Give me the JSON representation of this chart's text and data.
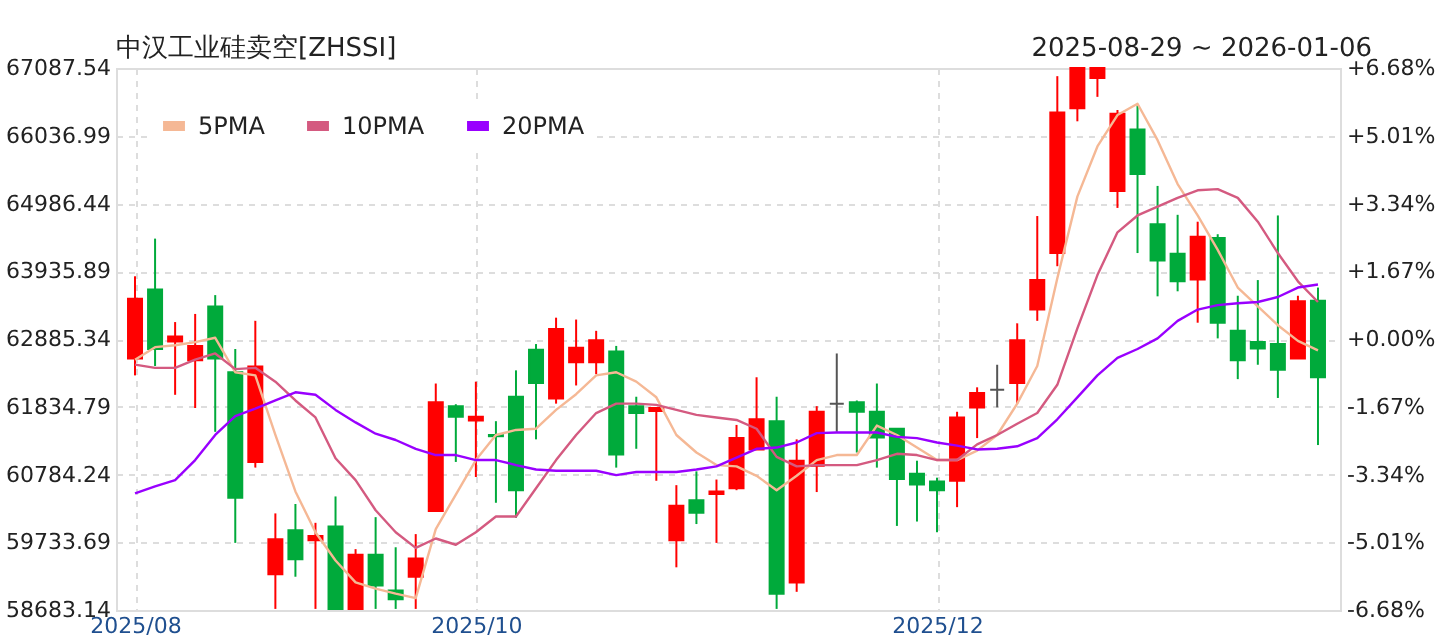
{
  "chart_data": {
    "type": "candlestick",
    "title": "中汉工业硅卖空[ZHSSI]",
    "subtitle": "2025-08-29 ~ 2026-01-06",
    "categories": [
      "2025/08",
      null,
      null,
      null,
      null,
      null,
      null,
      null,
      null,
      null,
      null,
      null,
      null,
      null,
      null,
      null,
      null,
      "2025/10",
      null,
      null,
      null,
      null,
      null,
      null,
      null,
      null,
      null,
      null,
      null,
      null,
      null,
      null,
      null,
      null,
      null,
      null,
      null,
      null,
      null,
      null,
      "2025/12",
      null,
      null,
      null,
      null,
      null,
      null,
      null,
      null,
      null,
      null,
      null,
      null,
      null,
      null,
      null,
      null,
      null,
      null,
      null
    ],
    "ohlc": [
      [
        62583,
        63858,
        62321,
        63508
      ],
      [
        63654,
        64442,
        62467,
        62730
      ],
      [
        62846,
        63148,
        62020,
        62924
      ],
      [
        62555,
        63274,
        61815,
        62778
      ],
      [
        63391,
        63566,
        61446,
        62583
      ],
      [
        62370,
        62730,
        59724,
        60425
      ],
      [
        60979,
        63167,
        60891,
        62457
      ],
      [
        59238,
        60181,
        58700,
        59782
      ],
      [
        59918,
        60327,
        59199,
        59471
      ],
      [
        59763,
        60035,
        58700,
        59831
      ],
      [
        59977,
        60444,
        58690,
        58700
      ],
      [
        58700,
        59627,
        58690,
        59539
      ],
      [
        59539,
        60123,
        58700,
        59062
      ],
      [
        58985,
        59656,
        58700,
        58848
      ],
      [
        59199,
        59860,
        58700,
        59481
      ],
      [
        60220,
        62195,
        60220,
        61903
      ],
      [
        61844,
        61874,
        60979,
        61679
      ],
      [
        61621,
        62224,
        60745,
        61679
      ],
      [
        61397,
        61611,
        60346,
        61378
      ],
      [
        61990,
        62399,
        60113,
        60541
      ],
      [
        62720,
        62807,
        61329,
        62204
      ],
      [
        61961,
        63216,
        61883,
        63041
      ],
      [
        62525,
        63187,
        62165,
        62749
      ],
      [
        62525,
        63012,
        62340,
        62866
      ],
      [
        62691,
        62778,
        60891,
        61095
      ],
      [
        61844,
        61990,
        61183,
        61737
      ],
      [
        61767,
        61815,
        60687,
        61815
      ],
      [
        59763,
        60619,
        59345,
        60298
      ],
      [
        60386,
        60833,
        60016,
        60191
      ],
      [
        60483,
        60706,
        59724,
        60522
      ],
      [
        60570,
        61553,
        60541,
        61349
      ],
      [
        61173,
        62292,
        61173,
        61640
      ],
      [
        61611,
        61990,
        58700,
        58936
      ],
      [
        59111,
        61329,
        58965,
        60998
      ],
      [
        60920,
        61844,
        60512,
        61757
      ],
      [
        61883,
        62661,
        61446,
        61883
      ],
      [
        61903,
        61932,
        61125,
        61757
      ],
      [
        61757,
        62195,
        60891,
        61358
      ],
      [
        61494,
        61494,
        59987,
        60716
      ],
      [
        60794,
        60998,
        60055,
        60629
      ],
      [
        60677,
        60735,
        59889,
        60541
      ],
      [
        60687,
        61757,
        60278,
        61669
      ],
      [
        61825,
        62136,
        61349,
        62049
      ],
      [
        62097,
        62486,
        61825,
        62097
      ],
      [
        62204,
        63128,
        61883,
        62866
      ],
      [
        63342,
        64792,
        63167,
        63799
      ],
      [
        64218,
        66961,
        64014,
        66397
      ],
      [
        66465,
        67087,
        66261,
        67087
      ],
      [
        66932,
        67087,
        66640,
        67087
      ],
      [
        65181,
        66436,
        64918,
        66377
      ],
      [
        66134,
        66523,
        64218,
        65444
      ],
      [
        64665,
        65259,
        63547,
        64101
      ],
      [
        64208,
        64811,
        63625,
        63780
      ],
      [
        63809,
        64704,
        63138,
        64471
      ],
      [
        64451,
        64510,
        62895,
        63138
      ],
      [
        63012,
        63556,
        62263,
        62555
      ],
      [
        62837,
        63799,
        62486,
        62739
      ],
      [
        62807,
        64801,
        61971,
        62409
      ],
      [
        62583,
        63556,
        62583,
        63469
      ],
      [
        63478,
        63683,
        61241,
        62292
      ]
    ],
    "colors": [
      "#ff0000",
      "#00aa3b",
      "#ff0000",
      "#ff0000",
      "#00aa3b",
      "#00aa3b",
      "#ff0000",
      "#ff0000",
      "#00aa3b",
      "#ff0000",
      "#00aa3b",
      "#ff0000",
      "#00aa3b",
      "#00aa3b",
      "#ff0000",
      "#ff0000",
      "#00aa3b",
      "#ff0000",
      "#00aa3b",
      "#00aa3b",
      "#00aa3b",
      "#ff0000",
      "#ff0000",
      "#ff0000",
      "#00aa3b",
      "#00aa3b",
      "#ff0000",
      "#ff0000",
      "#00aa3b",
      "#ff0000",
      "#ff0000",
      "#ff0000",
      "#00aa3b",
      "#ff0000",
      "#ff0000",
      "#555555",
      "#00aa3b",
      "#00aa3b",
      "#00aa3b",
      "#00aa3b",
      "#00aa3b",
      "#ff0000",
      "#ff0000",
      "#555555",
      "#ff0000",
      "#ff0000",
      "#ff0000",
      "#ff0000",
      "#ff0000",
      "#ff0000",
      "#00aa3b",
      "#00aa3b",
      "#00aa3b",
      "#ff0000",
      "#00aa3b",
      "#00aa3b",
      "#00aa3b",
      "#00aa3b",
      "#ff0000",
      "#00aa3b"
    ],
    "series": [
      {
        "name": "5PMA",
        "type": "line",
        "color": "#f5b895",
        "values": [
          62564,
          62759,
          62788,
          62836,
          62904,
          62370,
          62321,
          61397,
          60522,
          59889,
          59451,
          59111,
          59014,
          58936,
          58868,
          59938,
          60473,
          61008,
          61397,
          61475,
          61494,
          61786,
          62029,
          62321,
          62370,
          62224,
          61981,
          61397,
          61125,
          60930,
          60910,
          60764,
          60541,
          60764,
          61008,
          61086,
          61086,
          61543,
          61397,
          61202,
          61008,
          61008,
          61154,
          61397,
          61883,
          62467,
          63828,
          65093,
          65871,
          66358,
          66533,
          65969,
          65288,
          64801,
          64267,
          63683,
          63391,
          63099,
          62856,
          62710
        ]
      },
      {
        "name": "10PMA",
        "type": "line",
        "color": "#d45a80",
        "values": [
          62487,
          62438,
          62438,
          62564,
          62661,
          62418,
          62438,
          62224,
          61932,
          61669,
          61037,
          60697,
          60230,
          59889,
          59646,
          59792,
          59695,
          59889,
          60133,
          60133,
          60570,
          61008,
          61397,
          61737,
          61883,
          61883,
          61864,
          61786,
          61708,
          61669,
          61630,
          61494,
          61057,
          60910,
          60930,
          60930,
          60930,
          61008,
          61105,
          61086,
          61008,
          61008,
          61251,
          61397,
          61572,
          61737,
          62175,
          63050,
          63877,
          64539,
          64801,
          64938,
          65074,
          65191,
          65210,
          65074,
          64704,
          64218,
          63780,
          63459
        ]
      },
      {
        "name": "20PMA",
        "type": "line",
        "color": "#9900ff",
        "values": [
          60493,
          60600,
          60697,
          61008,
          61397,
          61689,
          61806,
          61932,
          62059,
          62020,
          61786,
          61592,
          61417,
          61319,
          61183,
          61086,
          61086,
          61008,
          61008,
          60930,
          60862,
          60842,
          60842,
          60842,
          60774,
          60823,
          60823,
          60823,
          60862,
          60910,
          61047,
          61183,
          61202,
          61280,
          61426,
          61436,
          61436,
          61436,
          61368,
          61349,
          61280,
          61232,
          61173,
          61183,
          61222,
          61349,
          61640,
          61981,
          62321,
          62593,
          62730,
          62895,
          63167,
          63342,
          63410,
          63440,
          63459,
          63537,
          63683,
          63731
        ]
      }
    ],
    "ylim": [
      58683.14,
      67087.54
    ],
    "yticks": [
      58683.14,
      59733.69,
      60784.24,
      61834.79,
      62885.34,
      63935.89,
      64986.44,
      66036.99,
      67087.54
    ],
    "y2lim": [
      -6.68,
      6.68
    ],
    "y2ticks": [
      {
        "value": -6.68,
        "label": "-6.68%"
      },
      {
        "value": -5.01,
        "label": "-5.01%"
      },
      {
        "value": -3.34,
        "label": "-3.34%"
      },
      {
        "value": -1.67,
        "label": "-1.67%"
      },
      {
        "value": 0,
        "label": "+0.00%"
      },
      {
        "value": 1.67,
        "label": "+1.67%"
      },
      {
        "value": 3.34,
        "label": "+3.34%"
      },
      {
        "value": 5.01,
        "label": "+5.01%"
      },
      {
        "value": 6.68,
        "label": "+6.68%"
      }
    ],
    "grid": true,
    "legend": "top left",
    "line_style": "solid",
    "marker": "none"
  }
}
